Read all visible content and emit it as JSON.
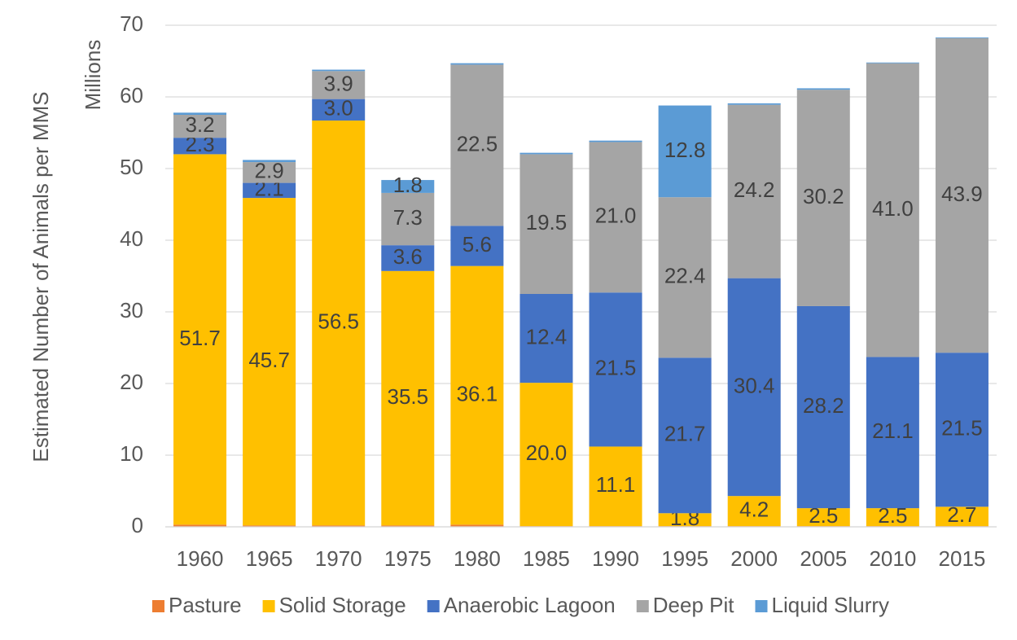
{
  "chart_data": {
    "type": "stacked_bar",
    "y_label": "Estimated Number of Animals per MMS",
    "y_unit_label": "Millions",
    "categories": [
      "1960",
      "1965",
      "1970",
      "1975",
      "1980",
      "1985",
      "1990",
      "1995",
      "2000",
      "2005",
      "2010",
      "2015"
    ],
    "series": [
      {
        "name": "Pasture",
        "color": "#ed7d31",
        "values": [
          0.3,
          0.2,
          0.2,
          0.2,
          0.3,
          0.1,
          0.1,
          0.1,
          0.1,
          0.1,
          0.1,
          0.1
        ],
        "value_labels": [
          null,
          null,
          null,
          null,
          null,
          null,
          null,
          null,
          null,
          null,
          null,
          null
        ]
      },
      {
        "name": "Solid Storage",
        "color": "#ffc000",
        "values": [
          51.7,
          45.7,
          56.5,
          35.5,
          36.1,
          20.0,
          11.1,
          1.8,
          4.2,
          2.5,
          2.5,
          2.7
        ],
        "value_labels": [
          "51.7",
          "45.7",
          "56.5",
          "35.5",
          "36.1",
          "20.0",
          "11.1",
          "1.8",
          "4.2",
          "2.5",
          "2.5",
          "2.7"
        ]
      },
      {
        "name": "Anaerobic Lagoon",
        "color": "#4472c4",
        "values": [
          2.3,
          2.1,
          3.0,
          3.6,
          5.6,
          12.4,
          21.5,
          21.7,
          30.4,
          28.2,
          21.1,
          21.5
        ],
        "value_labels": [
          "2.3",
          "2.1",
          "3.0",
          "3.6",
          "5.6",
          "12.4",
          "21.5",
          "21.7",
          "30.4",
          "28.2",
          "21.1",
          "21.5"
        ]
      },
      {
        "name": "Deep Pit",
        "color": "#a5a5a5",
        "values": [
          3.2,
          2.9,
          3.9,
          7.3,
          22.5,
          19.5,
          21.0,
          22.4,
          24.2,
          30.2,
          41.0,
          43.9
        ],
        "value_labels": [
          "3.2",
          "2.9",
          "3.9",
          "7.3",
          "22.5",
          "19.5",
          "21.0",
          "22.4",
          "24.2",
          "30.2",
          "41.0",
          "43.9"
        ]
      },
      {
        "name": "Liquid Slurry",
        "color": "#5b9bd5",
        "values": [
          0.3,
          0.3,
          0.2,
          1.8,
          0.2,
          0.2,
          0.2,
          12.8,
          0.2,
          0.2,
          0.1,
          0.1
        ],
        "value_labels": [
          null,
          null,
          null,
          "1.8",
          null,
          null,
          null,
          "12.8",
          null,
          null,
          null,
          null
        ]
      }
    ],
    "ylim": [
      0,
      70
    ],
    "yticks": [
      0,
      10,
      20,
      30,
      40,
      50,
      60,
      70
    ],
    "grid": true,
    "legend": "bottom"
  }
}
